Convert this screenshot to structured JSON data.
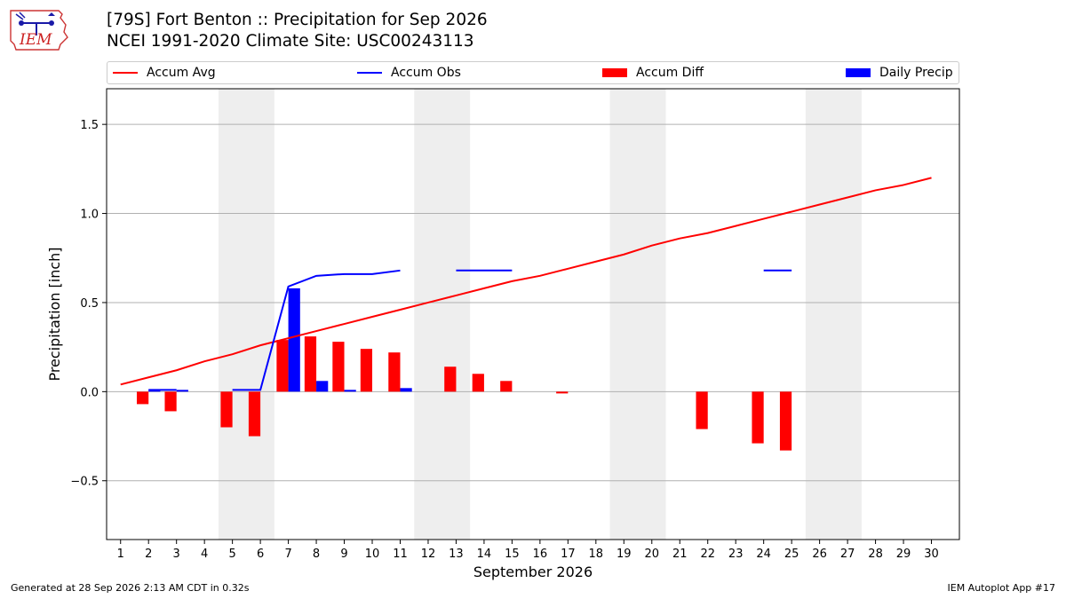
{
  "logo": {
    "text": "IEM",
    "icon": "iem-iowa-weather-logo"
  },
  "header": {
    "title": "[79S] Fort Benton :: Precipitation for Sep 2026",
    "subtitle": "NCEI 1991-2020 Climate Site: USC00243113"
  },
  "legend": {
    "placement": "top",
    "items": [
      {
        "label": "Accum Avg",
        "kind": "line",
        "color": "#ff0000"
      },
      {
        "label": "Accum Obs",
        "kind": "line",
        "color": "#0000ff"
      },
      {
        "label": "Accum Diff",
        "kind": "bar",
        "color": "#ff0000"
      },
      {
        "label": "Daily Precip",
        "kind": "bar",
        "color": "#0000ff"
      }
    ]
  },
  "footer": {
    "left": "Generated at 28 Sep 2026 2:13 AM CDT in 0.32s",
    "right": "IEM Autoplot App #17"
  },
  "chart_data": {
    "type": "bar",
    "xlabel": "September 2026",
    "ylabel": "Precipitation [inch]",
    "xlim": [
      0.5,
      31
    ],
    "ylim": [
      -0.83,
      1.7
    ],
    "yticks": [
      -0.5,
      0.0,
      0.5,
      1.0,
      1.5
    ],
    "ytick_labels": [
      "−0.5",
      "0.0",
      "0.5",
      "1.0",
      "1.5"
    ],
    "categories": [
      "1",
      "2",
      "3",
      "4",
      "5",
      "6",
      "7",
      "8",
      "9",
      "10",
      "11",
      "12",
      "13",
      "14",
      "15",
      "16",
      "17",
      "18",
      "19",
      "20",
      "21",
      "22",
      "23",
      "24",
      "25",
      "26",
      "27",
      "28",
      "29",
      "30"
    ],
    "grid": true,
    "weekend_shading": [
      [
        4.5,
        6.5
      ],
      [
        11.5,
        13.5
      ],
      [
        18.5,
        20.5
      ],
      [
        25.5,
        27.5
      ]
    ],
    "colors": {
      "avg": "#ff0000",
      "obs": "#0000ff",
      "diff": "#ff0000",
      "daily": "#0000ff",
      "shade": "#eeeeee",
      "grid": "#b0b0b0"
    },
    "series": [
      {
        "name": "Accum Avg",
        "kind": "line",
        "values": [
          0.04,
          0.08,
          0.12,
          0.17,
          0.21,
          0.26,
          0.3,
          0.34,
          0.38,
          0.42,
          0.46,
          0.5,
          0.54,
          0.58,
          0.62,
          0.65,
          0.69,
          0.73,
          0.77,
          0.82,
          0.86,
          0.89,
          0.93,
          0.97,
          1.01,
          1.05,
          1.09,
          1.13,
          1.16,
          1.2
        ]
      },
      {
        "name": "Accum Obs",
        "kind": "line",
        "values": [
          null,
          0.01,
          0.01,
          null,
          0.01,
          0.01,
          0.59,
          0.65,
          0.66,
          0.66,
          0.68,
          null,
          0.68,
          0.68,
          0.68,
          null,
          null,
          null,
          null,
          null,
          null,
          null,
          null,
          0.68,
          0.68,
          null,
          null,
          null,
          null,
          null
        ]
      },
      {
        "name": "Accum Diff",
        "kind": "bar",
        "values": [
          0,
          -0.07,
          -0.11,
          0,
          -0.2,
          -0.25,
          0.29,
          0.31,
          0.28,
          0.24,
          0.22,
          0,
          0.14,
          0.1,
          0.06,
          0,
          -0.01,
          0,
          0,
          0,
          0,
          -0.21,
          0,
          -0.29,
          -0.33,
          0,
          0,
          0,
          0,
          0
        ]
      },
      {
        "name": "Daily Precip",
        "kind": "bar",
        "values": [
          0,
          0.01,
          0.01,
          0,
          0,
          0,
          0.58,
          0.06,
          0.01,
          0,
          0.02,
          0,
          0,
          0,
          0,
          0,
          0,
          0,
          0,
          0,
          0,
          0,
          0,
          0,
          0,
          0,
          0,
          0,
          0,
          0
        ]
      }
    ]
  }
}
